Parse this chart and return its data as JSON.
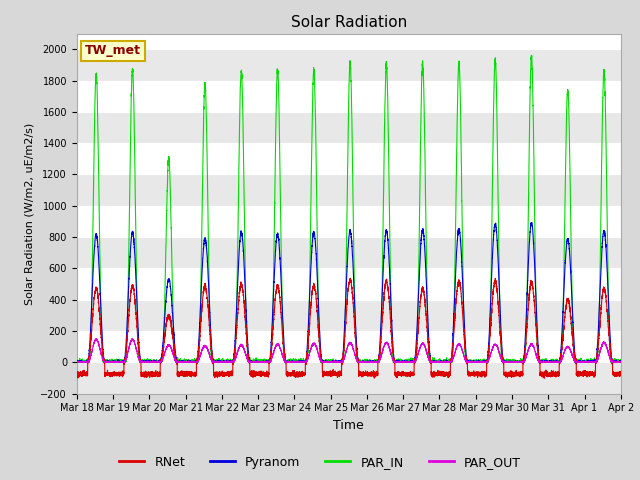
{
  "title": "Solar Radiation",
  "ylabel": "Solar Radiation (W/m2, uE/m2/s)",
  "xlabel": "Time",
  "ylim": [
    -200,
    2100
  ],
  "yticks": [
    -200,
    0,
    200,
    400,
    600,
    800,
    1000,
    1200,
    1400,
    1600,
    1800,
    2000
  ],
  "num_days": 15,
  "start_day": 18,
  "background_color": "#d8d8d8",
  "plot_bg_color": "#ffffff",
  "grid_color": "#cccccc",
  "colors": {
    "RNet": "#dd0000",
    "Pyranom": "#0000dd",
    "PAR_IN": "#00dd00",
    "PAR_OUT": "#dd00dd"
  },
  "station_label": "TW_met",
  "station_label_bg": "#ffffcc",
  "station_label_border": "#ccaa00",
  "peaks": {
    "RNet": [
      470,
      490,
      300,
      490,
      500,
      490,
      490,
      530,
      520,
      470,
      520,
      520,
      510,
      400,
      470
    ],
    "Pyranom": [
      815,
      830,
      530,
      790,
      830,
      820,
      830,
      840,
      840,
      845,
      850,
      885,
      890,
      790,
      840
    ],
    "PAR_IN": [
      1840,
      1870,
      1300,
      1780,
      1860,
      1860,
      1870,
      1910,
      1900,
      1910,
      1910,
      1930,
      1950,
      1740,
      1860
    ],
    "PAR_OUT": [
      145,
      145,
      110,
      105,
      110,
      115,
      120,
      125,
      125,
      120,
      115,
      115,
      115,
      100,
      125
    ]
  },
  "night_negative": {
    "RNet": -75,
    "Pyranom": 0,
    "PAR_IN": 0,
    "PAR_OUT": 0
  }
}
